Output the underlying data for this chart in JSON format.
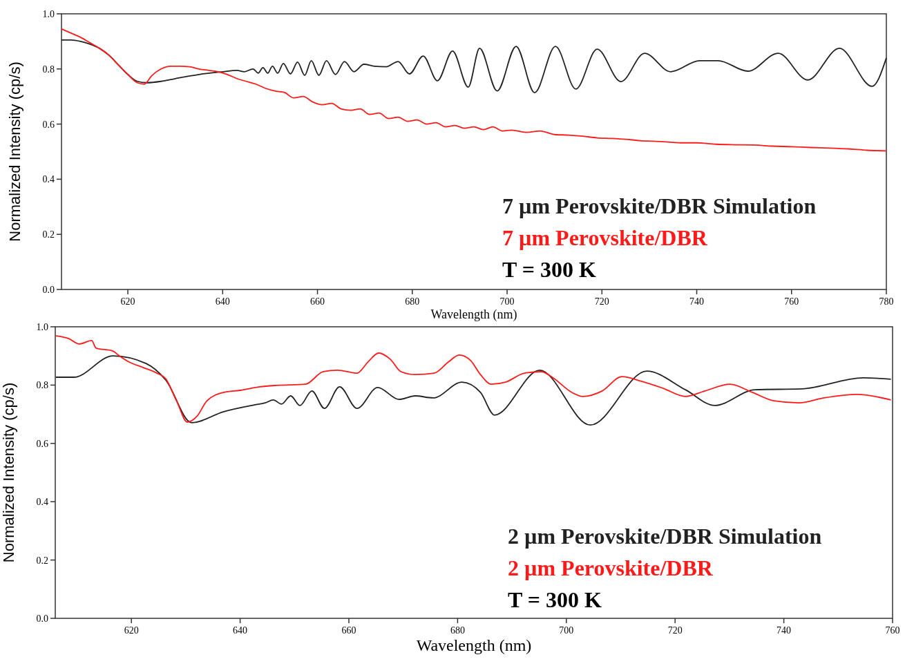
{
  "chart_data": [
    {
      "type": "line",
      "xlabel": "Wavelength (nm)",
      "ylabel": "Normalized Intensity (cp/s)",
      "xlim": [
        606,
        780
      ],
      "xticks": [
        620,
        640,
        660,
        680,
        700,
        720,
        740,
        760,
        780
      ],
      "ylim": [
        0,
        1
      ],
      "yticks": [
        {
          "value": 0,
          "label": "0.0"
        },
        {
          "value": 0.2,
          "label": "0.2"
        },
        {
          "value": 0.4,
          "label": "0.4"
        },
        {
          "value": 0.6,
          "label": "0.6"
        },
        {
          "value": 0.8,
          "label": "0.8"
        },
        {
          "value": 1,
          "label": "1.0"
        }
      ],
      "legend": "bottom right",
      "annotations": [
        "T = 300 K"
      ],
      "series": [
        {
          "name": "7 µm Perovskite/DBR Simulation",
          "color": "#222222",
          "x": [
            606,
            608,
            610,
            612,
            614,
            616,
            618,
            620,
            622,
            624,
            627,
            630,
            635,
            640,
            643,
            644.6,
            646.4,
            647.5,
            648.5,
            649.5,
            650.5,
            651.6,
            652.8,
            654.3,
            655.8,
            657.3,
            658.7,
            660.3,
            661.9,
            663.8,
            665.7,
            667.7,
            669.8,
            672,
            674.5,
            677,
            679.4,
            682.3,
            685.3,
            688.5,
            691.8,
            694.2,
            697.9,
            701.9,
            705.8,
            710.2,
            714.5,
            719,
            724,
            729,
            734.5,
            740.6,
            744.5,
            750.8,
            757.2,
            763.4,
            770.1,
            777,
            780
          ],
          "values": [
            0.905,
            0.905,
            0.9,
            0.89,
            0.875,
            0.85,
            0.815,
            0.78,
            0.755,
            0.75,
            0.755,
            0.765,
            0.78,
            0.79,
            0.795,
            0.79,
            0.8,
            0.785,
            0.805,
            0.785,
            0.81,
            0.785,
            0.82,
            0.782,
            0.825,
            0.777,
            0.83,
            0.777,
            0.83,
            0.78,
            0.827,
            0.79,
            0.817,
            0.81,
            0.808,
            0.827,
            0.782,
            0.847,
            0.757,
            0.865,
            0.734,
            0.875,
            0.72,
            0.882,
            0.714,
            0.882,
            0.727,
            0.872,
            0.754,
            0.857,
            0.79,
            0.83,
            0.83,
            0.792,
            0.857,
            0.76,
            0.875,
            0.737,
            0.84
          ]
        },
        {
          "name": "7 µm Perovskite/DBR",
          "color": "#ff1a1a",
          "x": [
            606,
            608,
            610,
            612,
            614,
            616,
            618,
            620,
            622,
            623.5,
            625,
            627,
            629,
            631,
            633,
            635,
            637,
            639,
            641,
            643,
            645,
            647,
            649,
            651,
            653,
            655,
            657,
            659,
            661,
            663,
            665,
            667,
            669,
            671,
            673,
            675,
            677,
            679,
            681,
            683,
            685,
            687,
            689,
            691,
            693,
            695,
            697,
            699,
            701,
            704,
            707,
            710,
            713,
            716,
            719,
            722,
            725,
            728,
            731,
            734,
            737,
            740,
            744,
            748,
            752,
            756,
            760,
            764,
            768,
            772,
            776,
            780
          ],
          "values": [
            0.945,
            0.93,
            0.915,
            0.895,
            0.875,
            0.85,
            0.815,
            0.78,
            0.75,
            0.745,
            0.775,
            0.8,
            0.81,
            0.81,
            0.808,
            0.8,
            0.795,
            0.79,
            0.78,
            0.765,
            0.755,
            0.745,
            0.73,
            0.72,
            0.715,
            0.695,
            0.7,
            0.68,
            0.67,
            0.675,
            0.655,
            0.65,
            0.655,
            0.635,
            0.64,
            0.62,
            0.625,
            0.61,
            0.615,
            0.6,
            0.605,
            0.59,
            0.595,
            0.585,
            0.59,
            0.58,
            0.59,
            0.575,
            0.578,
            0.57,
            0.575,
            0.562,
            0.56,
            0.556,
            0.55,
            0.548,
            0.545,
            0.54,
            0.538,
            0.535,
            0.532,
            0.532,
            0.527,
            0.525,
            0.524,
            0.52,
            0.518,
            0.515,
            0.513,
            0.51,
            0.505,
            0.503
          ]
        }
      ]
    },
    {
      "type": "line",
      "xlabel": "Wavelength (nm)",
      "ylabel": "Normalized Intensity (cp/s)",
      "xlim": [
        606,
        760
      ],
      "xticks": [
        620,
        640,
        660,
        680,
        700,
        720,
        740,
        760
      ],
      "ylim": [
        0,
        1
      ],
      "yticks": [
        {
          "value": 0,
          "label": "0.0"
        },
        {
          "value": 0.2,
          "label": "0.2"
        },
        {
          "value": 0.4,
          "label": "0.4"
        },
        {
          "value": 0.6,
          "label": "0.6"
        },
        {
          "value": 0.8,
          "label": "0.8"
        },
        {
          "value": 1,
          "label": "1.0"
        }
      ],
      "legend": "bottom right",
      "annotations": [
        "T = 300 K"
      ],
      "series": [
        {
          "name": "2 µm Perovskite/DBR Simulation",
          "color": "#222222",
          "x": [
            606.1,
            609.4,
            616.6,
            622.7,
            626.3,
            631.1,
            637,
            642.6,
            644.6,
            646.1,
            647.6,
            649.3,
            651,
            653.2,
            655.5,
            658.3,
            661.5,
            665.3,
            669.2,
            672.2,
            675.5,
            680.8,
            684.2,
            686.8,
            695.1,
            704.4,
            714.8,
            721.9,
            727.3,
            734.7,
            743.3,
            754.6,
            759.7
          ],
          "values": [
            0.827,
            0.827,
            0.9,
            0.874,
            0.818,
            0.671,
            0.709,
            0.732,
            0.739,
            0.749,
            0.735,
            0.763,
            0.73,
            0.78,
            0.72,
            0.794,
            0.72,
            0.792,
            0.751,
            0.763,
            0.756,
            0.81,
            0.775,
            0.697,
            0.851,
            0.663,
            0.848,
            0.784,
            0.73,
            0.784,
            0.787,
            0.825,
            0.82
          ]
        },
        {
          "name": "2 µm Perovskite/DBR",
          "color": "#ff1a1a",
          "x": [
            606.1,
            608.4,
            610.4,
            612.7,
            613.5,
            616.6,
            617.6,
            619.6,
            622.2,
            624.7,
            626.3,
            628.3,
            630.3,
            632.1,
            633.9,
            637,
            640,
            643.6,
            646.7,
            652,
            655.3,
            657.9,
            661.5,
            663.5,
            665.5,
            667.6,
            669.6,
            672.2,
            675.7,
            678.3,
            680.3,
            682.4,
            684.2,
            686.2,
            688.8,
            692.3,
            695.4,
            697.4,
            701,
            703,
            706.6,
            710.2,
            713.8,
            717.8,
            721.9,
            725.5,
            730.1,
            734.2,
            738.2,
            742.8,
            747.4,
            753.5,
            759.7
          ],
          "values": [
            0.969,
            0.96,
            0.941,
            0.953,
            0.927,
            0.917,
            0.903,
            0.879,
            0.86,
            0.841,
            0.822,
            0.746,
            0.673,
            0.694,
            0.746,
            0.775,
            0.782,
            0.794,
            0.799,
            0.803,
            0.846,
            0.851,
            0.841,
            0.879,
            0.91,
            0.889,
            0.846,
            0.836,
            0.841,
            0.879,
            0.903,
            0.884,
            0.836,
            0.803,
            0.81,
            0.841,
            0.846,
            0.827,
            0.775,
            0.761,
            0.78,
            0.829,
            0.813,
            0.789,
            0.761,
            0.78,
            0.803,
            0.775,
            0.746,
            0.739,
            0.756,
            0.768,
            0.749
          ]
        }
      ]
    }
  ]
}
